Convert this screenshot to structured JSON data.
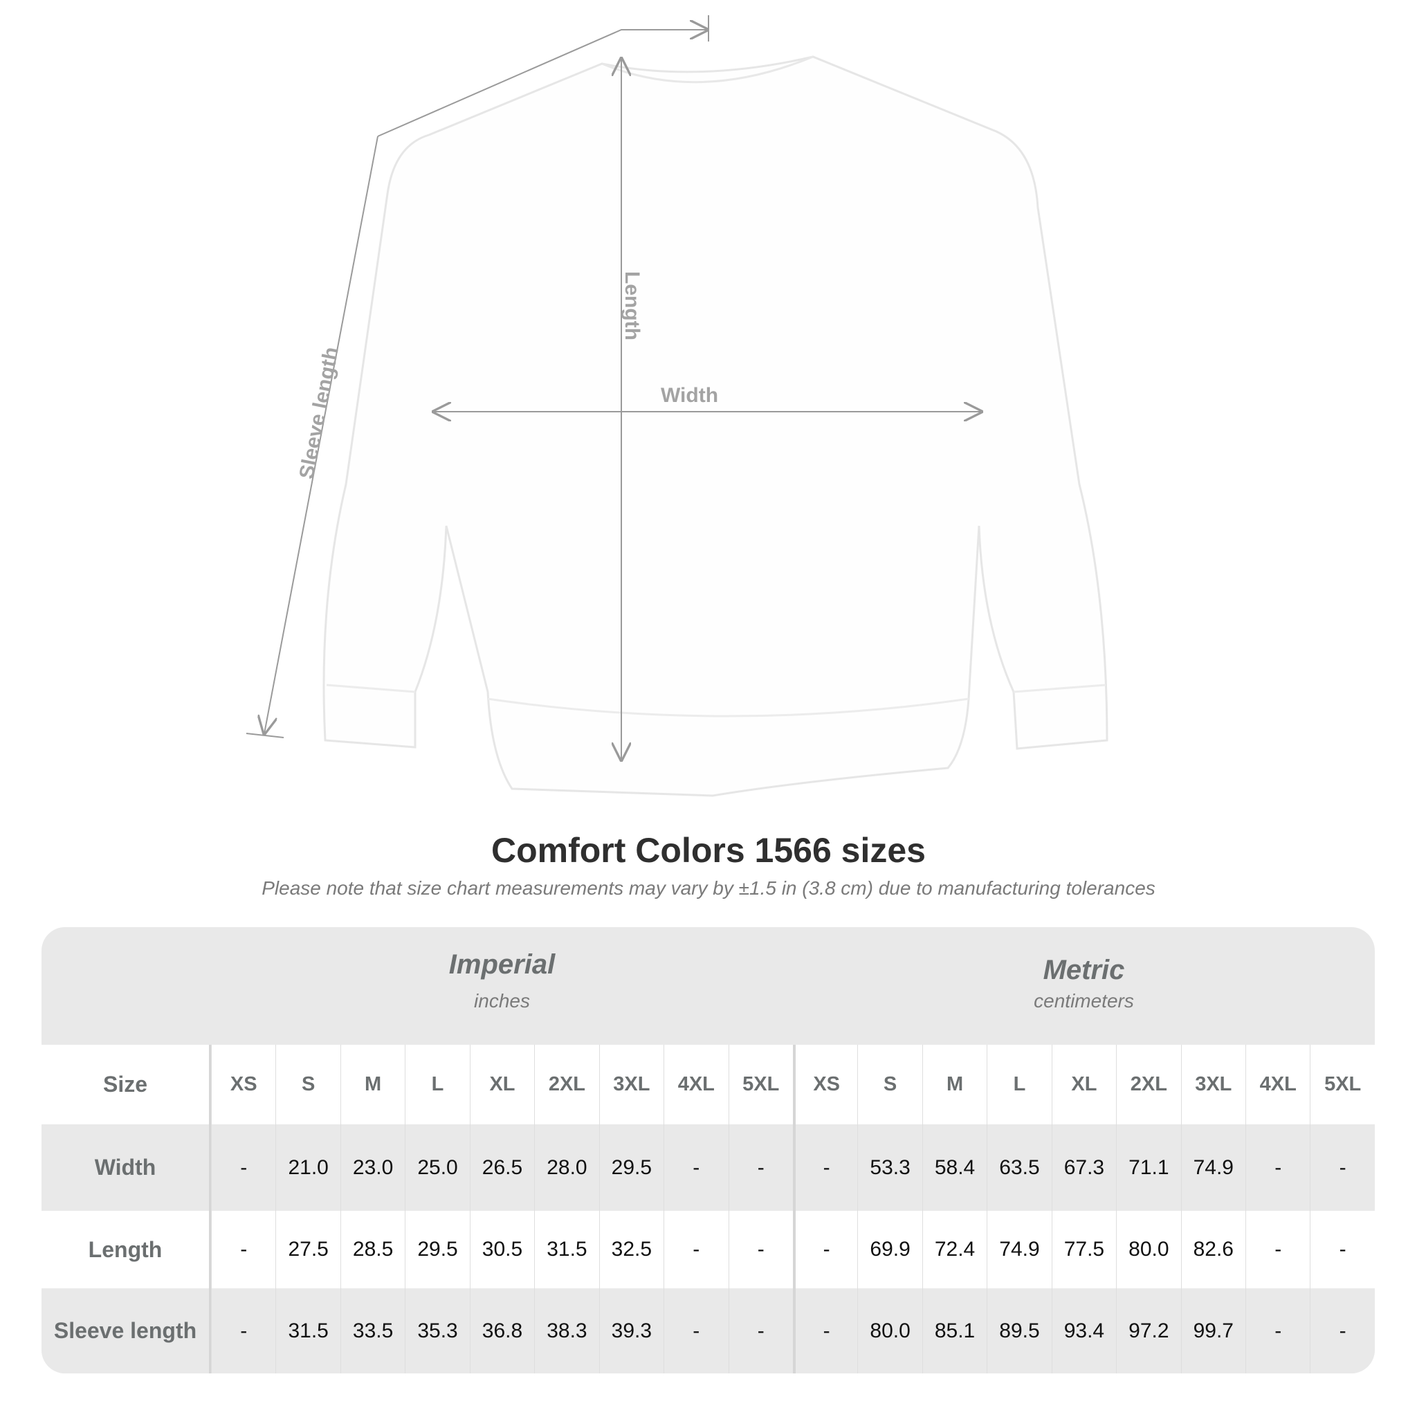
{
  "diagram": {
    "labels": {
      "length": "Length",
      "width": "Width",
      "sleeve": "Sleeve length"
    },
    "garment_color": "#ffffff",
    "line_color": "#9a9a9a"
  },
  "title": "Comfort Colors 1566 sizes",
  "subtitle": "Please note that size chart measurements may vary by ±1.5 in (3.8 cm) due to manufacturing tolerances",
  "table": {
    "imperial": {
      "name": "Imperial",
      "unit": "inches"
    },
    "metric": {
      "name": "Metric",
      "unit": "centimeters"
    },
    "size_label": "Size",
    "sizes": [
      "XS",
      "S",
      "M",
      "L",
      "XL",
      "2XL",
      "3XL",
      "4XL",
      "5XL"
    ],
    "rows": [
      {
        "label": "Width",
        "imperial": [
          "-",
          "21.0",
          "23.0",
          "25.0",
          "26.5",
          "28.0",
          "29.5",
          "-",
          "-"
        ],
        "metric": [
          "-",
          "53.3",
          "58.4",
          "63.5",
          "67.3",
          "71.1",
          "74.9",
          "-",
          "-"
        ]
      },
      {
        "label": "Length",
        "imperial": [
          "-",
          "27.5",
          "28.5",
          "29.5",
          "30.5",
          "31.5",
          "32.5",
          "-",
          "-"
        ],
        "metric": [
          "-",
          "69.9",
          "72.4",
          "74.9",
          "77.5",
          "80.0",
          "82.6",
          "-",
          "-"
        ]
      },
      {
        "label": "Sleeve length",
        "imperial": [
          "-",
          "31.5",
          "33.5",
          "35.3",
          "36.8",
          "38.3",
          "39.3",
          "-",
          "-"
        ],
        "metric": [
          "-",
          "80.0",
          "85.1",
          "89.5",
          "93.4",
          "97.2",
          "99.7",
          "-",
          "-"
        ]
      }
    ]
  }
}
